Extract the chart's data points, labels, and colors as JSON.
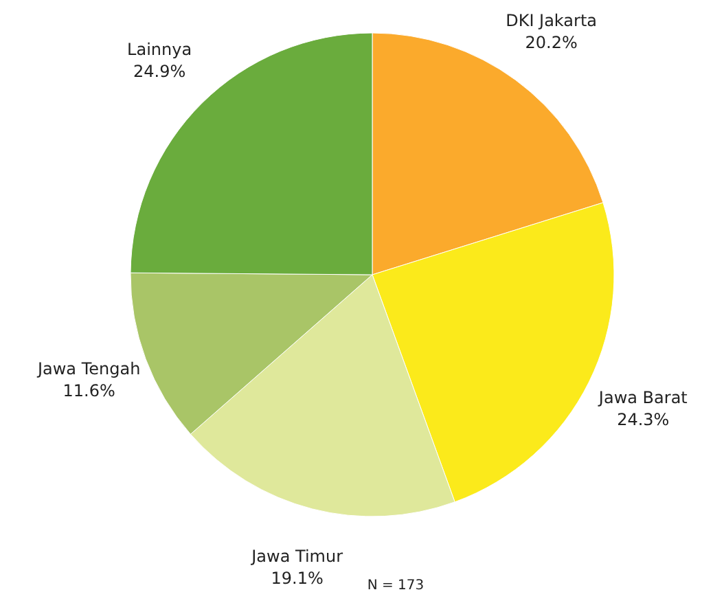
{
  "chart_data": {
    "type": "pie",
    "categories": [
      "DKI Jakarta",
      "Jawa Barat",
      "Jawa Timur",
      "Jawa Tengah",
      "Lainnya"
    ],
    "values": [
      20.2,
      24.3,
      19.1,
      11.6,
      24.9
    ],
    "value_labels": [
      "20.2%",
      "24.3%",
      "19.1%",
      "11.6%",
      "24.9%"
    ],
    "colors": [
      "#fbaa2c",
      "#fbea1b",
      "#dfe89b",
      "#a9c567",
      "#6aac3d"
    ],
    "annotations": [
      "N = 173"
    ]
  }
}
